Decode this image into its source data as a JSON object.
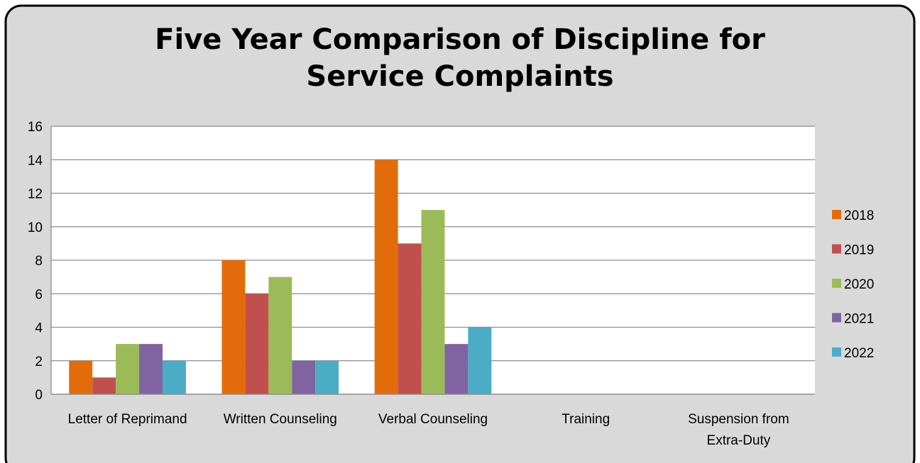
{
  "chart_data": {
    "type": "bar",
    "title": "Five Year Comparison of Discipline for Service Complaints",
    "categories": [
      "Letter of Reprimand",
      "Written Counseling",
      "Verbal Counseling",
      "Training",
      "Suspension from Extra-Duty"
    ],
    "series": [
      {
        "name": "2018",
        "color": "#E36C0A",
        "values": [
          2,
          8,
          14,
          0,
          0
        ]
      },
      {
        "name": "2019",
        "color": "#C0504D",
        "values": [
          1,
          6,
          9,
          0,
          0
        ]
      },
      {
        "name": "2020",
        "color": "#9BBB59",
        "values": [
          3,
          7,
          11,
          0,
          0
        ]
      },
      {
        "name": "2021",
        "color": "#8064A2",
        "values": [
          3,
          2,
          3,
          0,
          0
        ]
      },
      {
        "name": "2022",
        "color": "#4BACC6",
        "values": [
          2,
          2,
          4,
          0,
          0
        ]
      }
    ],
    "ylim": [
      0,
      16
    ],
    "yticks": [
      0,
      2,
      4,
      6,
      8,
      10,
      12,
      14,
      16
    ],
    "grid": true,
    "legend": "right"
  }
}
